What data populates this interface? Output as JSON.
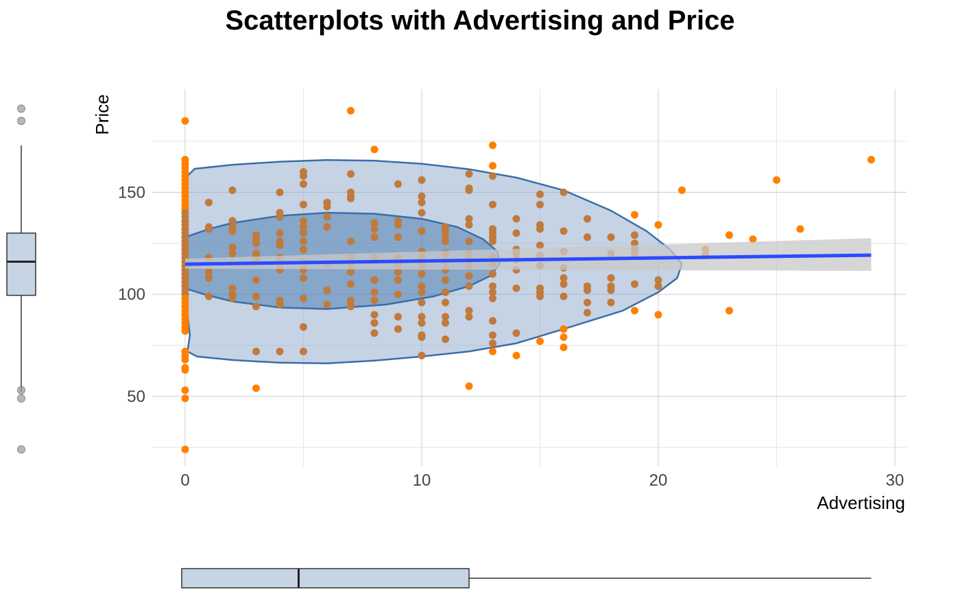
{
  "chart_data": {
    "type": "scatter",
    "title": "Scatterplots with Advertising and Price",
    "xlabel": "Advertising",
    "ylabel": "Price",
    "xlim": [
      -1.5,
      30.5
    ],
    "ylim": [
      18,
      193
    ],
    "x_ticks": [
      0,
      10,
      20,
      30
    ],
    "y_ticks": [
      50,
      100,
      150
    ],
    "grid": true,
    "colors": {
      "points": "#ff8000",
      "points_inside": "#c07a3c",
      "ellipse_fill": "#8ba8cc",
      "ellipse_stroke": "#3a6ea8",
      "regression": "#2a4bff",
      "confidence_band": "#c8c8c8",
      "box_fill": "#c6d4e4",
      "outlier": "#999999"
    },
    "points": [
      [
        0,
        185
      ],
      [
        0,
        166
      ],
      [
        0,
        164
      ],
      [
        0,
        162
      ],
      [
        0,
        160
      ],
      [
        0,
        158
      ],
      [
        0,
        156
      ],
      [
        0,
        154
      ],
      [
        0,
        152
      ],
      [
        0,
        150
      ],
      [
        0,
        148
      ],
      [
        0,
        146
      ],
      [
        0,
        144
      ],
      [
        0,
        142
      ],
      [
        0,
        140
      ],
      [
        0,
        138
      ],
      [
        0,
        136
      ],
      [
        0,
        134
      ],
      [
        0,
        132
      ],
      [
        0,
        130
      ],
      [
        0,
        128
      ],
      [
        0,
        126
      ],
      [
        0,
        124
      ],
      [
        0,
        122
      ],
      [
        0,
        120
      ],
      [
        0,
        118
      ],
      [
        0,
        116
      ],
      [
        0,
        114
      ],
      [
        0,
        112
      ],
      [
        0,
        110
      ],
      [
        0,
        108
      ],
      [
        0,
        106
      ],
      [
        0,
        104
      ],
      [
        0,
        102
      ],
      [
        0,
        100
      ],
      [
        0,
        98
      ],
      [
        0,
        96
      ],
      [
        0,
        94
      ],
      [
        0,
        92
      ],
      [
        0,
        90
      ],
      [
        0,
        88
      ],
      [
        0,
        86
      ],
      [
        0,
        84
      ],
      [
        0,
        82
      ],
      [
        0,
        72
      ],
      [
        0,
        70
      ],
      [
        0,
        68
      ],
      [
        0,
        64
      ],
      [
        0,
        63
      ],
      [
        0,
        53
      ],
      [
        0,
        49
      ],
      [
        0,
        24
      ],
      [
        1,
        145
      ],
      [
        1,
        133
      ],
      [
        1,
        132
      ],
      [
        1,
        118
      ],
      [
        1,
        111
      ],
      [
        1,
        108
      ],
      [
        1,
        99
      ],
      [
        2,
        151
      ],
      [
        2,
        136
      ],
      [
        2,
        133
      ],
      [
        2,
        131
      ],
      [
        2,
        123
      ],
      [
        2,
        120
      ],
      [
        2,
        103
      ],
      [
        2,
        100
      ],
      [
        2,
        98
      ],
      [
        3,
        129
      ],
      [
        3,
        127
      ],
      [
        3,
        125
      ],
      [
        3,
        120
      ],
      [
        3,
        118
      ],
      [
        3,
        116
      ],
      [
        3,
        107
      ],
      [
        3,
        99
      ],
      [
        3,
        94
      ],
      [
        3,
        72
      ],
      [
        3,
        54
      ],
      [
        4,
        150
      ],
      [
        4,
        140
      ],
      [
        4,
        138
      ],
      [
        4,
        130
      ],
      [
        4,
        126
      ],
      [
        4,
        124
      ],
      [
        4,
        118
      ],
      [
        4,
        115
      ],
      [
        4,
        112
      ],
      [
        4,
        97
      ],
      [
        4,
        95
      ],
      [
        4,
        72
      ],
      [
        5,
        160
      ],
      [
        5,
        158
      ],
      [
        5,
        154
      ],
      [
        5,
        144
      ],
      [
        5,
        136
      ],
      [
        5,
        133
      ],
      [
        5,
        130
      ],
      [
        5,
        126
      ],
      [
        5,
        122
      ],
      [
        5,
        116
      ],
      [
        5,
        112
      ],
      [
        5,
        108
      ],
      [
        5,
        98
      ],
      [
        5,
        84
      ],
      [
        5,
        72
      ],
      [
        6,
        145
      ],
      [
        6,
        143
      ],
      [
        6,
        138
      ],
      [
        6,
        133
      ],
      [
        6,
        115
      ],
      [
        6,
        102
      ],
      [
        6,
        95
      ],
      [
        7,
        190
      ],
      [
        7,
        159
      ],
      [
        7,
        150
      ],
      [
        7,
        148
      ],
      [
        7,
        147
      ],
      [
        7,
        126
      ],
      [
        7,
        118
      ],
      [
        7,
        115
      ],
      [
        7,
        111
      ],
      [
        7,
        105
      ],
      [
        7,
        97
      ],
      [
        7,
        95
      ],
      [
        7,
        94
      ],
      [
        8,
        171
      ],
      [
        8,
        135
      ],
      [
        8,
        132
      ],
      [
        8,
        128
      ],
      [
        8,
        118
      ],
      [
        8,
        107
      ],
      [
        8,
        101
      ],
      [
        8,
        97
      ],
      [
        8,
        90
      ],
      [
        8,
        86
      ],
      [
        8,
        81
      ],
      [
        9,
        154
      ],
      [
        9,
        136
      ],
      [
        9,
        134
      ],
      [
        9,
        128
      ],
      [
        9,
        118
      ],
      [
        9,
        115
      ],
      [
        9,
        111
      ],
      [
        9,
        107
      ],
      [
        9,
        100
      ],
      [
        9,
        89
      ],
      [
        9,
        83
      ],
      [
        10,
        156
      ],
      [
        10,
        148
      ],
      [
        10,
        145
      ],
      [
        10,
        140
      ],
      [
        10,
        131
      ],
      [
        10,
        121
      ],
      [
        10,
        118
      ],
      [
        10,
        114
      ],
      [
        10,
        110
      ],
      [
        10,
        104
      ],
      [
        10,
        101
      ],
      [
        10,
        96
      ],
      [
        10,
        89
      ],
      [
        10,
        86
      ],
      [
        10,
        80
      ],
      [
        10,
        79
      ],
      [
        10,
        70
      ],
      [
        11,
        133
      ],
      [
        11,
        131
      ],
      [
        11,
        128
      ],
      [
        11,
        126
      ],
      [
        11,
        120
      ],
      [
        11,
        116
      ],
      [
        11,
        112
      ],
      [
        11,
        107
      ],
      [
        11,
        101
      ],
      [
        11,
        96
      ],
      [
        11,
        89
      ],
      [
        11,
        86
      ],
      [
        11,
        78
      ],
      [
        12,
        159
      ],
      [
        12,
        152
      ],
      [
        12,
        151
      ],
      [
        12,
        137
      ],
      [
        12,
        134
      ],
      [
        12,
        126
      ],
      [
        12,
        120
      ],
      [
        12,
        118
      ],
      [
        12,
        114
      ],
      [
        12,
        109
      ],
      [
        12,
        104
      ],
      [
        12,
        92
      ],
      [
        12,
        89
      ],
      [
        12,
        55
      ],
      [
        13,
        173
      ],
      [
        13,
        163
      ],
      [
        13,
        158
      ],
      [
        13,
        144
      ],
      [
        13,
        132
      ],
      [
        13,
        130
      ],
      [
        13,
        128
      ],
      [
        13,
        126
      ],
      [
        13,
        118
      ],
      [
        13,
        115
      ],
      [
        13,
        110
      ],
      [
        13,
        104
      ],
      [
        13,
        101
      ],
      [
        13,
        98
      ],
      [
        13,
        87
      ],
      [
        13,
        80
      ],
      [
        13,
        76
      ],
      [
        13,
        72
      ],
      [
        14,
        137
      ],
      [
        14,
        130
      ],
      [
        14,
        122
      ],
      [
        14,
        120
      ],
      [
        14,
        117
      ],
      [
        14,
        112
      ],
      [
        14,
        103
      ],
      [
        14,
        81
      ],
      [
        14,
        70
      ],
      [
        15,
        149
      ],
      [
        15,
        144
      ],
      [
        15,
        134
      ],
      [
        15,
        132
      ],
      [
        15,
        124
      ],
      [
        15,
        119
      ],
      [
        15,
        114
      ],
      [
        15,
        103
      ],
      [
        15,
        101
      ],
      [
        15,
        99
      ],
      [
        15,
        77
      ],
      [
        16,
        150
      ],
      [
        16,
        131
      ],
      [
        16,
        121
      ],
      [
        16,
        113
      ],
      [
        16,
        108
      ],
      [
        16,
        105
      ],
      [
        16,
        99
      ],
      [
        16,
        83
      ],
      [
        16,
        79
      ],
      [
        16,
        74
      ],
      [
        17,
        137
      ],
      [
        17,
        128
      ],
      [
        17,
        104
      ],
      [
        17,
        102
      ],
      [
        17,
        96
      ],
      [
        17,
        91
      ],
      [
        18,
        128
      ],
      [
        18,
        120
      ],
      [
        18,
        108
      ],
      [
        18,
        104
      ],
      [
        18,
        102
      ],
      [
        18,
        96
      ],
      [
        19,
        139
      ],
      [
        19,
        129
      ],
      [
        19,
        125
      ],
      [
        19,
        122
      ],
      [
        19,
        120
      ],
      [
        19,
        105
      ],
      [
        19,
        92
      ],
      [
        20,
        134
      ],
      [
        20,
        107
      ],
      [
        20,
        104
      ],
      [
        20,
        90
      ],
      [
        21,
        151
      ],
      [
        22,
        122
      ],
      [
        22,
        119
      ],
      [
        23,
        129
      ],
      [
        23,
        92
      ],
      [
        24,
        127
      ],
      [
        25,
        156
      ],
      [
        26,
        132
      ],
      [
        29,
        166
      ]
    ],
    "regression": {
      "x": [
        0,
        29
      ],
      "y": [
        114.8,
        119.2
      ]
    },
    "confidence_band": {
      "x": [
        0,
        29
      ],
      "lower": [
        112.5,
        111.5
      ],
      "upper": [
        117.5,
        127.5
      ]
    },
    "ellipse_outer": [
      [
        0.1,
        72
      ],
      [
        0.2,
        80
      ],
      [
        0,
        100
      ],
      [
        0,
        140
      ],
      [
        0.1,
        158
      ],
      [
        0.4,
        161.5
      ],
      [
        2,
        163.5
      ],
      [
        4,
        165
      ],
      [
        6,
        165.8
      ],
      [
        8,
        165.5
      ],
      [
        10,
        164
      ],
      [
        12,
        161.3
      ],
      [
        14,
        157.2
      ],
      [
        16,
        151
      ],
      [
        18,
        141
      ],
      [
        19.5,
        131
      ],
      [
        20.5,
        122
      ],
      [
        21,
        115
      ],
      [
        20.8,
        108
      ],
      [
        20,
        101
      ],
      [
        18.5,
        92
      ],
      [
        16,
        83
      ],
      [
        14,
        76
      ],
      [
        12,
        72
      ],
      [
        10,
        69.5
      ],
      [
        8,
        67.5
      ],
      [
        6,
        66.2
      ],
      [
        4,
        66.5
      ],
      [
        2,
        67.8
      ],
      [
        0.5,
        69.5
      ]
    ],
    "ellipse_inner": [
      [
        0,
        103
      ],
      [
        0,
        128
      ],
      [
        1,
        132
      ],
      [
        2,
        135
      ],
      [
        4,
        138.5
      ],
      [
        6,
        140
      ],
      [
        8,
        139.5
      ],
      [
        10,
        137
      ],
      [
        11.5,
        133
      ],
      [
        12.6,
        127
      ],
      [
        13.2,
        121
      ],
      [
        13.3,
        115
      ],
      [
        12.9,
        109
      ],
      [
        12,
        104
      ],
      [
        10.5,
        99
      ],
      [
        8.5,
        95
      ],
      [
        6,
        92.8
      ],
      [
        4,
        93.5
      ],
      [
        2,
        96.5
      ],
      [
        0.8,
        100
      ]
    ],
    "y_boxplot": {
      "whisker_low": 52,
      "q1": 99.5,
      "median": 116,
      "q3": 130,
      "whisker_high": 173,
      "outliers": [
        191,
        185,
        53,
        49,
        24
      ]
    },
    "x_boxplot": {
      "whisker_low": 0,
      "q1": 0,
      "median": 5,
      "q3": 12,
      "whisker_high": 29
    }
  }
}
